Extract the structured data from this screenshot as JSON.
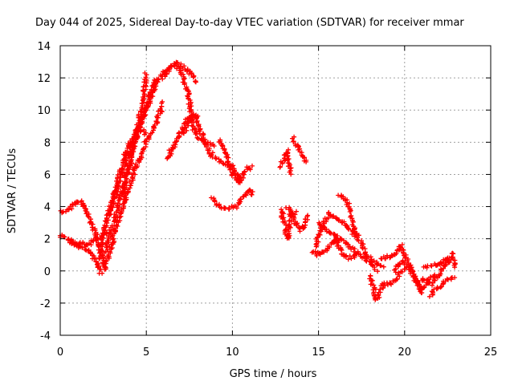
{
  "chart_data": {
    "type": "scatter",
    "title": "Day 044 of 2025, Sidereal Day-to-day VTEC variation (SDTVAR) for receiver mmar",
    "xlabel": "GPS time / hours",
    "ylabel": "SDTVAR / TECUs",
    "xlim": [
      0,
      25
    ],
    "ylim": [
      -4,
      14
    ],
    "xticks": [
      0,
      5,
      10,
      15,
      20,
      25
    ],
    "yticks": [
      -4,
      -2,
      0,
      2,
      4,
      6,
      8,
      10,
      12,
      14
    ],
    "grid": true,
    "legend": "none",
    "marker": "+",
    "series": [
      {
        "name": "SDTVAR",
        "color": "#ff0000",
        "tracks": [
          [
            [
              0,
              3.7
            ],
            [
              0.5,
              3.8
            ],
            [
              0.8,
              4.2
            ],
            [
              1.2,
              4.3
            ],
            [
              1.6,
              3.5
            ],
            [
              2.0,
              2.5
            ],
            [
              2.4,
              1.2
            ],
            [
              2.6,
              0.0
            ]
          ],
          [
            [
              0,
              2.2
            ],
            [
              0.4,
              2.0
            ],
            [
              0.8,
              1.7
            ],
            [
              1.2,
              1.7
            ],
            [
              1.6,
              1.6
            ],
            [
              2.0,
              2.0
            ],
            [
              2.4,
              2.2
            ],
            [
              2.8,
              2.5
            ]
          ],
          [
            [
              0.6,
              2.0
            ],
            [
              1.0,
              1.5
            ],
            [
              1.5,
              1.4
            ],
            [
              2.0,
              0.8
            ],
            [
              2.4,
              -0.2
            ]
          ],
          [
            [
              2.2,
              0.8
            ],
            [
              2.8,
              3.5
            ],
            [
              3.3,
              5.5
            ],
            [
              3.8,
              7.3
            ],
            [
              4.3,
              8.5
            ],
            [
              4.7,
              8.8
            ],
            [
              5.0,
              8.5
            ]
          ],
          [
            [
              2.6,
              1.2
            ],
            [
              3.2,
              3.5
            ],
            [
              3.8,
              5.8
            ],
            [
              4.3,
              7.8
            ],
            [
              4.8,
              9.5
            ],
            [
              5.2,
              10.5
            ],
            [
              5.6,
              11.8
            ],
            [
              6.0,
              12.2
            ]
          ],
          [
            [
              3.6,
              4.5
            ],
            [
              4.0,
              6.5
            ],
            [
              4.4,
              8.5
            ],
            [
              4.8,
              10.5
            ],
            [
              5.0,
              12.3
            ]
          ],
          [
            [
              2.9,
              3.5
            ],
            [
              3.4,
              5.5
            ],
            [
              4.0,
              7.5
            ],
            [
              4.6,
              9.0
            ],
            [
              5.2,
              10.8
            ],
            [
              5.6,
              12.0
            ]
          ],
          [
            [
              2.6,
              0.2
            ],
            [
              3.2,
              2.5
            ],
            [
              3.8,
              4.6
            ],
            [
              4.4,
              6.5
            ],
            [
              5.0,
              8.0
            ],
            [
              5.5,
              9.0
            ],
            [
              6.0,
              10.5
            ]
          ],
          [
            [
              6.0,
              12.0
            ],
            [
              6.4,
              12.7
            ],
            [
              6.8,
              12.9
            ],
            [
              7.2,
              12.6
            ],
            [
              7.6,
              12.3
            ],
            [
              7.9,
              11.7
            ]
          ],
          [
            [
              6.0,
              12.3
            ],
            [
              6.6,
              12.8
            ],
            [
              7.0,
              12.5
            ],
            [
              7.3,
              11.5
            ],
            [
              7.5,
              10.5
            ],
            [
              7.7,
              9.0
            ],
            [
              8.0,
              8.3
            ],
            [
              8.5,
              8.0
            ],
            [
              9.0,
              7.8
            ]
          ],
          [
            [
              6.2,
              7.0
            ],
            [
              6.8,
              8.2
            ],
            [
              7.4,
              9.5
            ],
            [
              7.8,
              9.7
            ],
            [
              8.2,
              8.5
            ],
            [
              8.8,
              7.2
            ],
            [
              9.5,
              6.7
            ],
            [
              10.0,
              6.5
            ],
            [
              10.5,
              5.5
            ]
          ],
          [
            [
              7.2,
              8.5
            ],
            [
              7.6,
              9.7
            ],
            [
              8.0,
              9.5
            ]
          ],
          [
            [
              9.2,
              8.2
            ],
            [
              9.6,
              7.5
            ],
            [
              10.0,
              6.0
            ],
            [
              10.4,
              5.5
            ],
            [
              10.8,
              6.3
            ],
            [
              11.2,
              6.5
            ]
          ],
          [
            [
              8.8,
              4.5
            ],
            [
              9.3,
              4.0
            ],
            [
              9.8,
              3.9
            ],
            [
              10.2,
              4.0
            ],
            [
              10.6,
              4.6
            ],
            [
              11.0,
              5.0
            ],
            [
              11.2,
              4.7
            ]
          ],
          [
            [
              12.8,
              3.8
            ],
            [
              13.0,
              3.0
            ],
            [
              13.2,
              2.0
            ],
            [
              13.4,
              3.5
            ],
            [
              13.7,
              3.7
            ]
          ],
          [
            [
              12.8,
              6.5
            ],
            [
              13.0,
              7.0
            ],
            [
              13.2,
              7.5
            ],
            [
              13.4,
              6.0
            ]
          ],
          [
            [
              13.5,
              8.3
            ],
            [
              13.7,
              7.8
            ],
            [
              14.0,
              7.2
            ],
            [
              14.3,
              6.7
            ]
          ],
          [
            [
              13.2,
              4.0
            ],
            [
              13.6,
              3.0
            ],
            [
              14.0,
              2.5
            ],
            [
              14.4,
              3.5
            ]
          ],
          [
            [
              14.8,
              1.5
            ],
            [
              15.2,
              2.8
            ],
            [
              15.6,
              3.6
            ],
            [
              16.0,
              3.3
            ],
            [
              16.4,
              3.0
            ],
            [
              16.8,
              2.7
            ],
            [
              17.2,
              2.0
            ]
          ],
          [
            [
              14.6,
              1.2
            ],
            [
              15.0,
              1.0
            ],
            [
              15.5,
              1.3
            ],
            [
              16.0,
              2.0
            ],
            [
              16.4,
              1.0
            ],
            [
              16.8,
              0.8
            ],
            [
              17.3,
              1.0
            ]
          ],
          [
            [
              16.2,
              4.8
            ],
            [
              16.6,
              4.5
            ],
            [
              17.0,
              3.0
            ],
            [
              17.3,
              2.0
            ],
            [
              17.8,
              1.0
            ],
            [
              18.3,
              0.5
            ],
            [
              18.8,
              0.3
            ]
          ],
          [
            [
              15.0,
              3.0
            ],
            [
              15.6,
              2.5
            ],
            [
              16.2,
              2.0
            ],
            [
              16.8,
              1.5
            ],
            [
              17.4,
              1.0
            ],
            [
              18.0,
              0.5
            ],
            [
              18.4,
              0.0
            ]
          ],
          [
            [
              18.0,
              -0.3
            ],
            [
              18.4,
              -1.8
            ],
            [
              18.8,
              -0.8
            ],
            [
              19.2,
              -0.8
            ],
            [
              19.6,
              -0.4
            ],
            [
              20.0,
              0.2
            ]
          ],
          [
            [
              18.6,
              0.8
            ],
            [
              19.2,
              0.9
            ],
            [
              19.6,
              1.2
            ],
            [
              19.8,
              1.6
            ],
            [
              20.0,
              1.0
            ],
            [
              20.4,
              0.2
            ],
            [
              20.8,
              -0.8
            ],
            [
              21.0,
              -1.5
            ]
          ],
          [
            [
              19.4,
              0.0
            ],
            [
              19.8,
              0.6
            ],
            [
              20.2,
              0.3
            ],
            [
              20.6,
              -0.5
            ],
            [
              21.0,
              -1.2
            ],
            [
              21.4,
              -0.5
            ],
            [
              21.8,
              -0.3
            ]
          ],
          [
            [
              21.0,
              -0.5
            ],
            [
              21.6,
              -0.8
            ],
            [
              22.0,
              -0.2
            ],
            [
              22.4,
              0.5
            ],
            [
              22.8,
              0.8
            ],
            [
              23.0,
              0.2
            ]
          ],
          [
            [
              21.2,
              0.2
            ],
            [
              21.8,
              0.4
            ],
            [
              22.3,
              0.6
            ],
            [
              22.7,
              0.9
            ],
            [
              22.9,
              1.2
            ]
          ],
          [
            [
              21.5,
              -1.5
            ],
            [
              22.0,
              -1.0
            ],
            [
              22.4,
              -0.6
            ],
            [
              22.9,
              -0.4
            ]
          ]
        ]
      }
    ]
  }
}
